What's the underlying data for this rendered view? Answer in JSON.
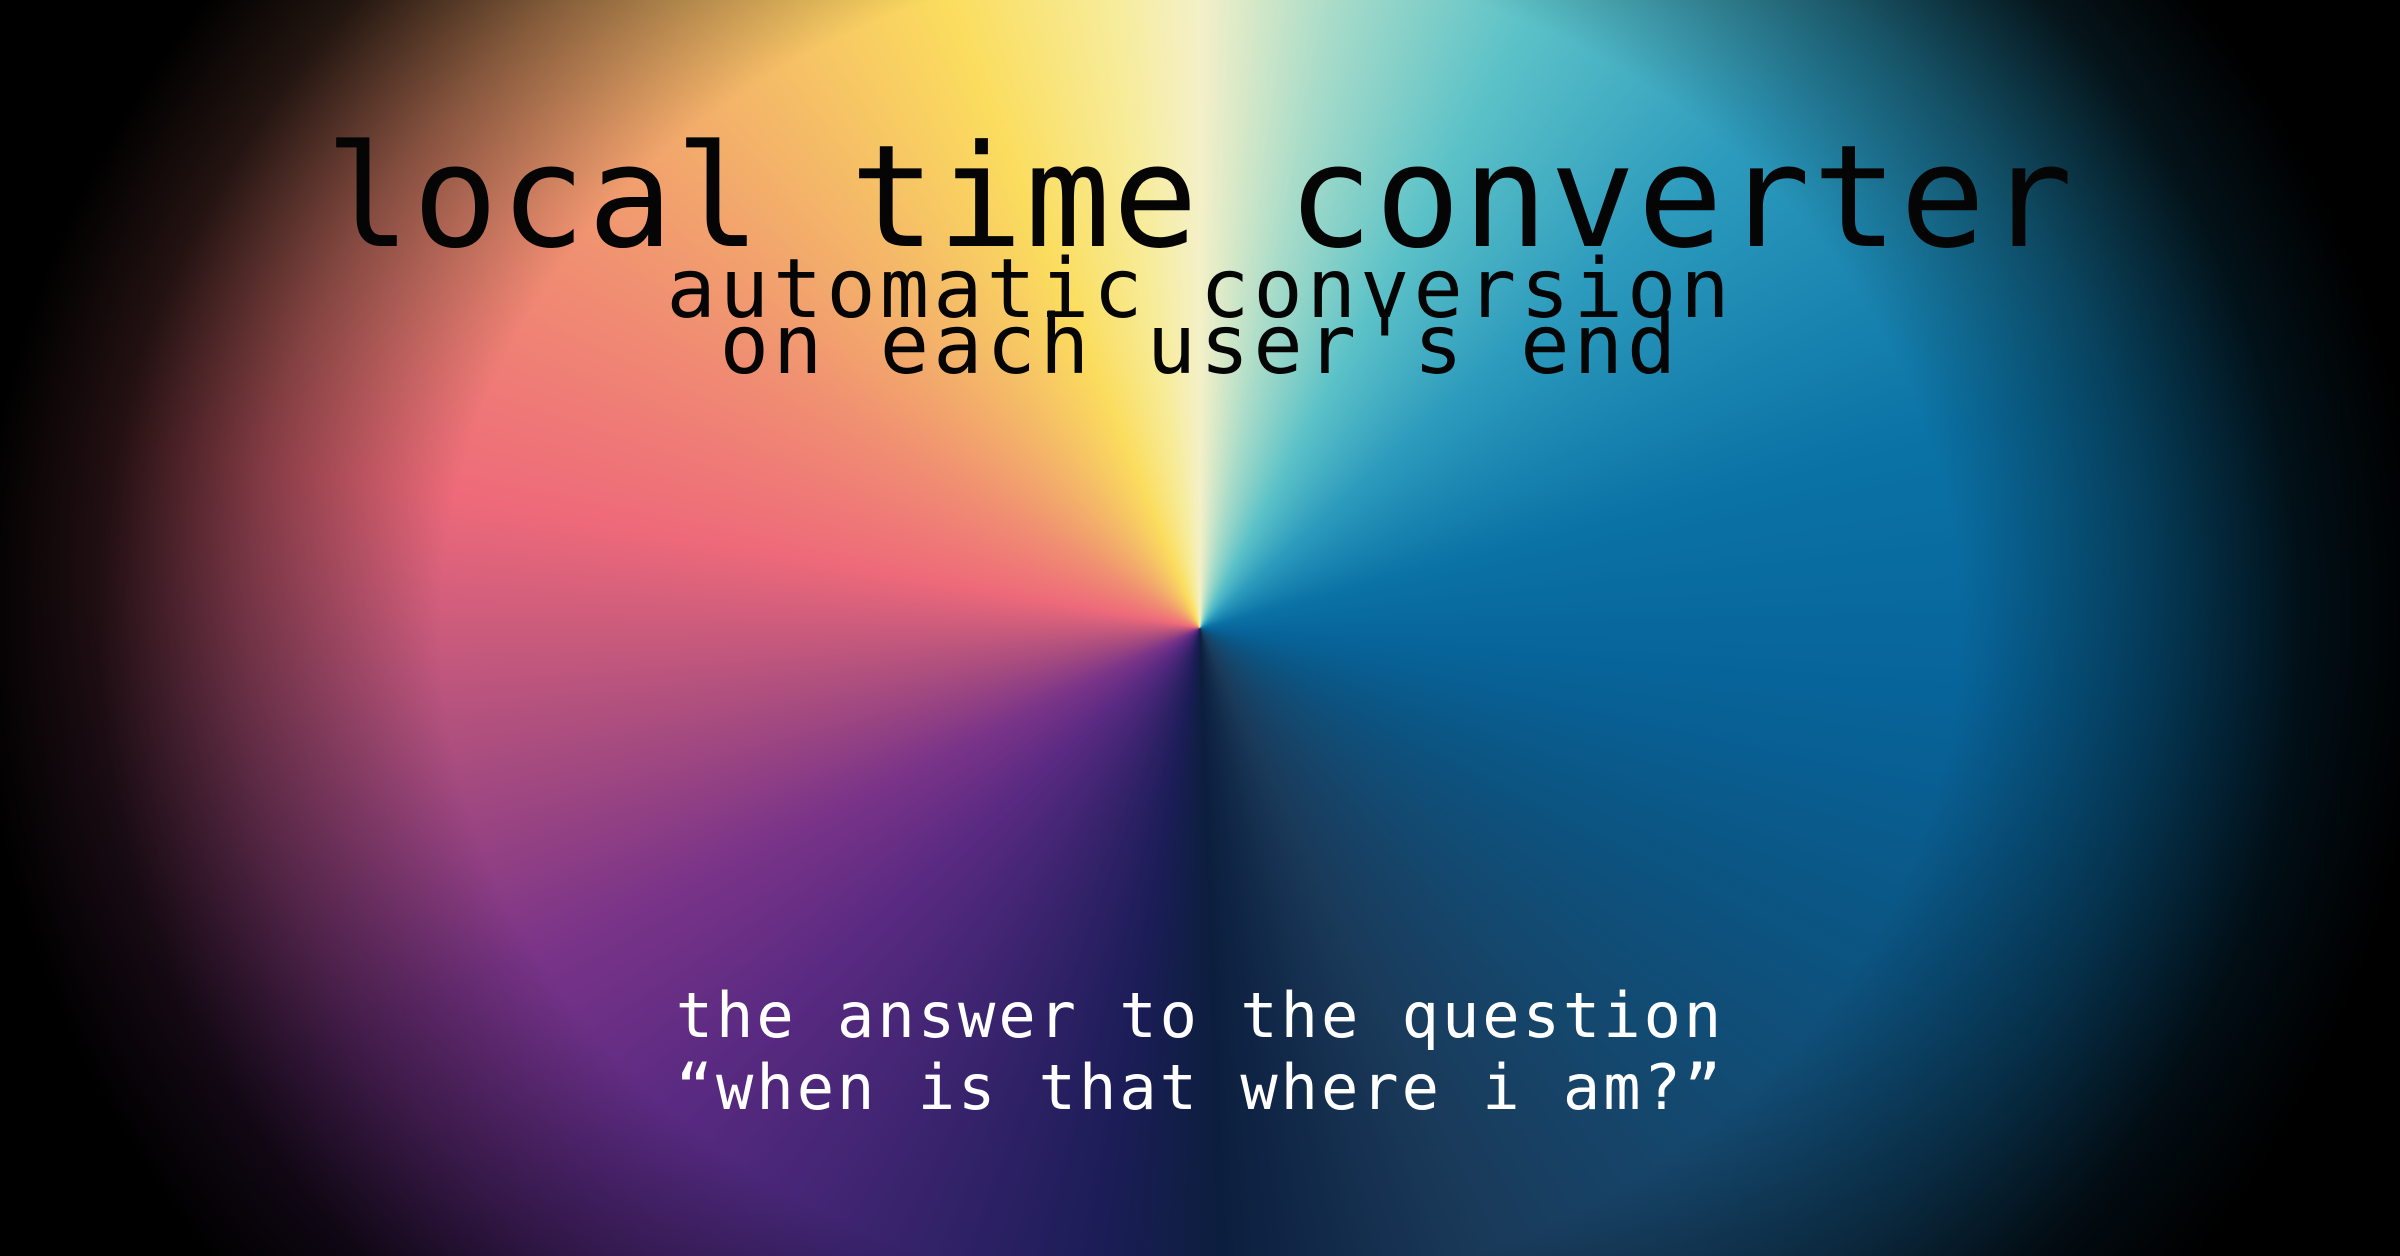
{
  "hero": {
    "title": "local time converter",
    "subtitle_line1": "automatic conversion",
    "subtitle_line2": "on each user's end",
    "tagline_line1": "the answer to the question",
    "tagline_line2": "“when is that where i am?”"
  },
  "colors": {
    "title_text": "#050505",
    "tagline_text": "#ffffff",
    "vignette": "#000000"
  }
}
